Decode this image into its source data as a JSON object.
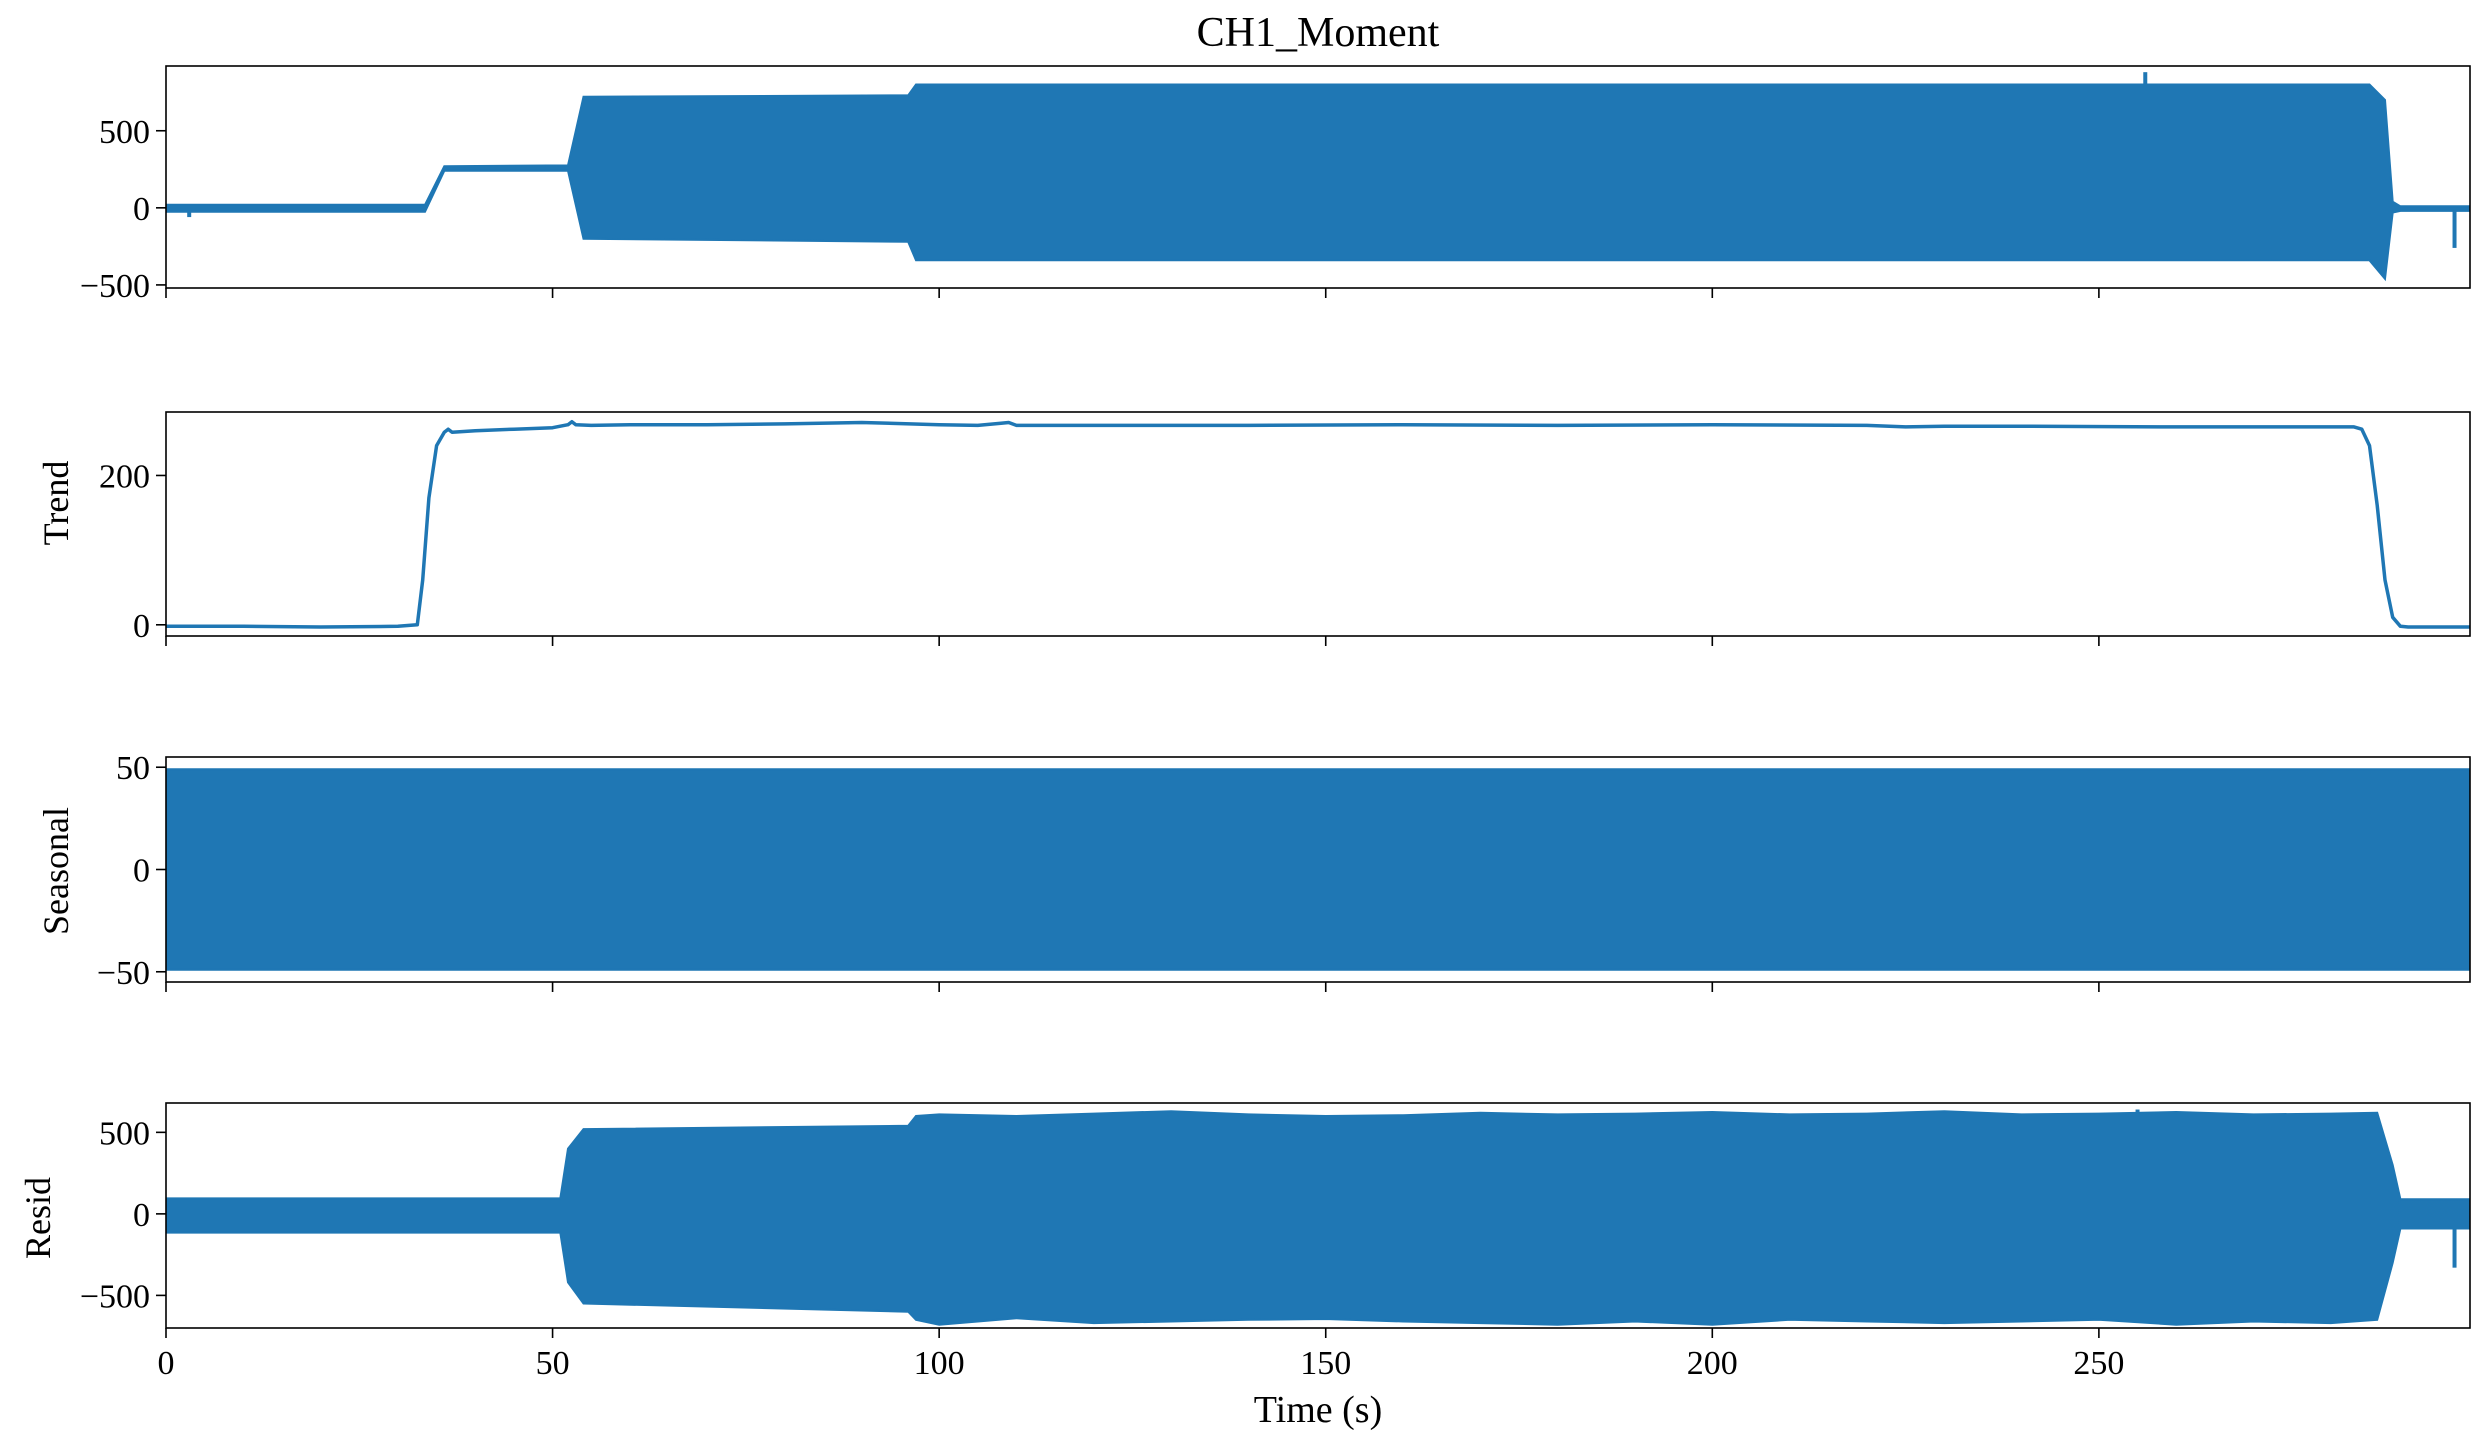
{
  "figure": {
    "title": "CH1_Moment",
    "xlabel": "Time (s)",
    "series_color": "#1f77b4",
    "xlim": [
      0,
      298
    ],
    "xticks": [
      0,
      50,
      100,
      150,
      200,
      250
    ]
  },
  "chart_data": [
    {
      "type": "line",
      "title": "CH1_Moment",
      "ylabel": "",
      "xlabel": "",
      "xlim": [
        0,
        298
      ],
      "ylim": [
        -520,
        920
      ],
      "yticks": [
        -500,
        0,
        500
      ],
      "grid": false,
      "legend": "none",
      "style": "band",
      "envelope": {
        "x": [
          0,
          33.5,
          36,
          52,
          54,
          96,
          97,
          285,
          287,
          288,
          289,
          298
        ],
        "upper": [
          20,
          20,
          270,
          275,
          720,
          730,
          800,
          800,
          700,
          40,
          10,
          10
        ],
        "lower": [
          -25,
          -25,
          240,
          240,
          -200,
          -220,
          -340,
          -340,
          -460,
          -30,
          -20,
          -20
        ]
      },
      "spikes": [
        {
          "x": 256,
          "y": 880
        },
        {
          "x": 296,
          "y": -260
        },
        {
          "x": 3,
          "y": -60
        }
      ]
    },
    {
      "type": "line",
      "ylabel": "Trend",
      "xlabel": "",
      "xlim": [
        0,
        298
      ],
      "ylim": [
        -15,
        285
      ],
      "yticks": [
        0,
        200
      ],
      "grid": false,
      "legend": "none",
      "style": "line",
      "x": [
        0,
        10,
        20,
        30,
        32.5,
        33.2,
        34,
        35,
        36,
        36.5,
        37,
        40,
        45,
        50,
        52,
        52.5,
        53,
        55,
        60,
        70,
        80,
        90,
        100,
        105,
        108,
        109,
        110,
        120,
        140,
        160,
        180,
        200,
        220,
        225,
        230,
        240,
        260,
        283,
        284,
        285,
        286,
        287,
        288,
        289,
        290,
        295,
        298
      ],
      "y": [
        -2,
        -2,
        -3,
        -2,
        0,
        60,
        170,
        240,
        258,
        262,
        258,
        260,
        262,
        264,
        268,
        272,
        268,
        267,
        268,
        268,
        269,
        271,
        268,
        267,
        270,
        271,
        267,
        267,
        267,
        268,
        267,
        268,
        267,
        265,
        266,
        266,
        265,
        265,
        262,
        240,
        160,
        60,
        10,
        -2,
        -3,
        -3,
        -3
      ]
    },
    {
      "type": "line",
      "ylabel": "Seasonal",
      "xlabel": "",
      "xlim": [
        0,
        298
      ],
      "ylim": [
        -55,
        55
      ],
      "yticks": [
        -50,
        0,
        50
      ],
      "grid": false,
      "legend": "none",
      "style": "band",
      "envelope": {
        "x": [
          0,
          298
        ],
        "upper": [
          49,
          49
        ],
        "lower": [
          -49,
          -49
        ]
      }
    },
    {
      "type": "line",
      "ylabel": "Resid",
      "xlabel": "Time (s)",
      "xlim": [
        0,
        298
      ],
      "ylim": [
        -700,
        680
      ],
      "yticks": [
        -500,
        0,
        500
      ],
      "grid": false,
      "legend": "none",
      "style": "band",
      "envelope": {
        "x": [
          0,
          51,
          52,
          54,
          96,
          97,
          100,
          110,
          120,
          130,
          140,
          150,
          160,
          170,
          180,
          190,
          200,
          210,
          220,
          230,
          240,
          250,
          260,
          270,
          280,
          286,
          288,
          289,
          298
        ],
        "upper": [
          95,
          95,
          400,
          520,
          540,
          600,
          610,
          600,
          615,
          630,
          610,
          600,
          605,
          620,
          610,
          615,
          625,
          610,
          615,
          630,
          610,
          615,
          625,
          610,
          615,
          620,
          300,
          90,
          90
        ],
        "lower": [
          -115,
          -115,
          -420,
          -550,
          -600,
          -650,
          -680,
          -640,
          -670,
          -660,
          -650,
          -645,
          -660,
          -670,
          -680,
          -660,
          -680,
          -650,
          -660,
          -670,
          -660,
          -650,
          -680,
          -660,
          -670,
          -650,
          -300,
          -90,
          -90
        ]
      },
      "spikes": [
        {
          "x": 296,
          "y": -330
        },
        {
          "x": 255,
          "y": 640
        }
      ]
    }
  ]
}
